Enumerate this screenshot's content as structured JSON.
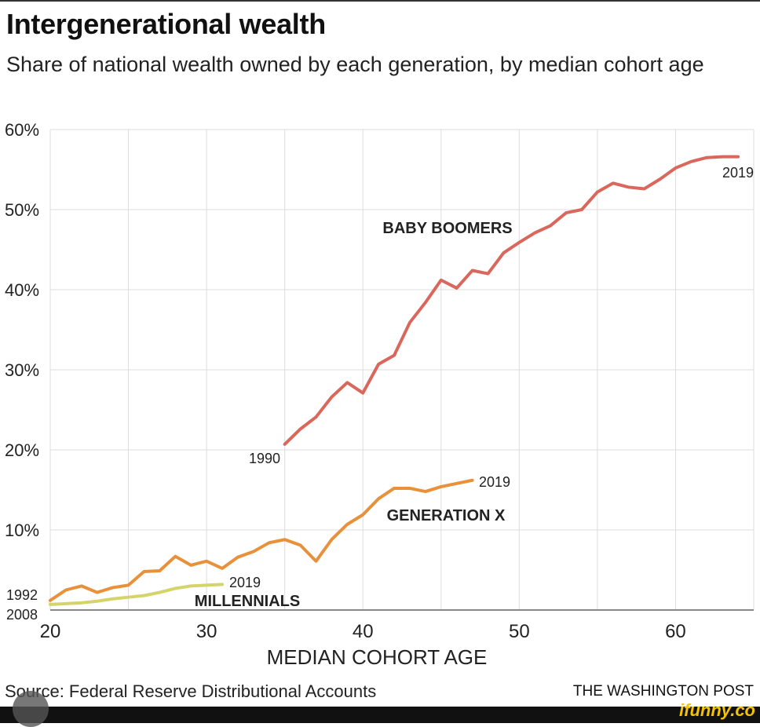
{
  "chart_data": {
    "type": "line",
    "title": "Intergenerational wealth",
    "subtitle": "Share of national wealth owned by each generation, by median cohort age",
    "xlabel": "MEDIAN COHORT AGE",
    "ylabel": "",
    "xlim": [
      20,
      65
    ],
    "ylim": [
      0,
      60
    ],
    "x_ticks": [
      20,
      30,
      40,
      50,
      60
    ],
    "x_tick_labels": [
      "20",
      "30",
      "40",
      "50",
      "60"
    ],
    "y_ticks": [
      10,
      20,
      30,
      40,
      50,
      60
    ],
    "y_tick_labels": [
      "10%",
      "20%",
      "30%",
      "40%",
      "50%",
      "60%"
    ],
    "grid": true,
    "series": [
      {
        "name": "BABY BOOMERS",
        "color": "#d9675c",
        "start_label": "1990",
        "end_label": "2019",
        "x": [
          35,
          36,
          37,
          38,
          39,
          40,
          41,
          42,
          43,
          44,
          45,
          46,
          47,
          48,
          49,
          50,
          51,
          52,
          53,
          54,
          55,
          56,
          57,
          58,
          59,
          60,
          61,
          62,
          63,
          64
        ],
        "values": [
          20.7,
          22.6,
          24.1,
          26.6,
          28.4,
          27.1,
          30.7,
          31.8,
          35.9,
          38.4,
          41.2,
          40.2,
          42.4,
          42.0,
          44.6,
          45.9,
          47.1,
          48.0,
          49.6,
          50.0,
          52.2,
          53.3,
          52.8,
          52.6,
          53.8,
          55.2,
          56.0,
          56.5,
          56.6,
          56.6
        ]
      },
      {
        "name": "GENERATION X",
        "color": "#e8913a",
        "start_label": "1992",
        "end_label": "2019",
        "x": [
          20,
          21,
          22,
          23,
          24,
          25,
          26,
          27,
          28,
          29,
          30,
          31,
          32,
          33,
          34,
          35,
          36,
          37,
          38,
          39,
          40,
          41,
          42,
          43,
          44,
          45,
          46,
          47
        ],
        "values": [
          1.2,
          2.5,
          3.0,
          2.2,
          2.8,
          3.1,
          4.8,
          4.9,
          6.7,
          5.6,
          6.1,
          5.2,
          6.6,
          7.3,
          8.4,
          8.8,
          8.1,
          6.1,
          8.8,
          10.7,
          11.9,
          13.9,
          15.2,
          15.2,
          14.8,
          15.4,
          15.8,
          16.2
        ]
      },
      {
        "name": "MILLENNIALS",
        "color": "#d4d46a",
        "start_label": "2008",
        "end_label": "2019",
        "x": [
          20,
          21,
          22,
          23,
          24,
          25,
          26,
          27,
          28,
          29,
          30,
          31
        ],
        "values": [
          0.7,
          0.8,
          0.9,
          1.1,
          1.4,
          1.6,
          1.8,
          2.2,
          2.7,
          3.0,
          3.1,
          3.2
        ]
      }
    ]
  },
  "footer": {
    "source": "Source: Federal Reserve Distributional Accounts",
    "credit": "THE WASHINGTON POST",
    "watermark": "ifunny.co"
  }
}
